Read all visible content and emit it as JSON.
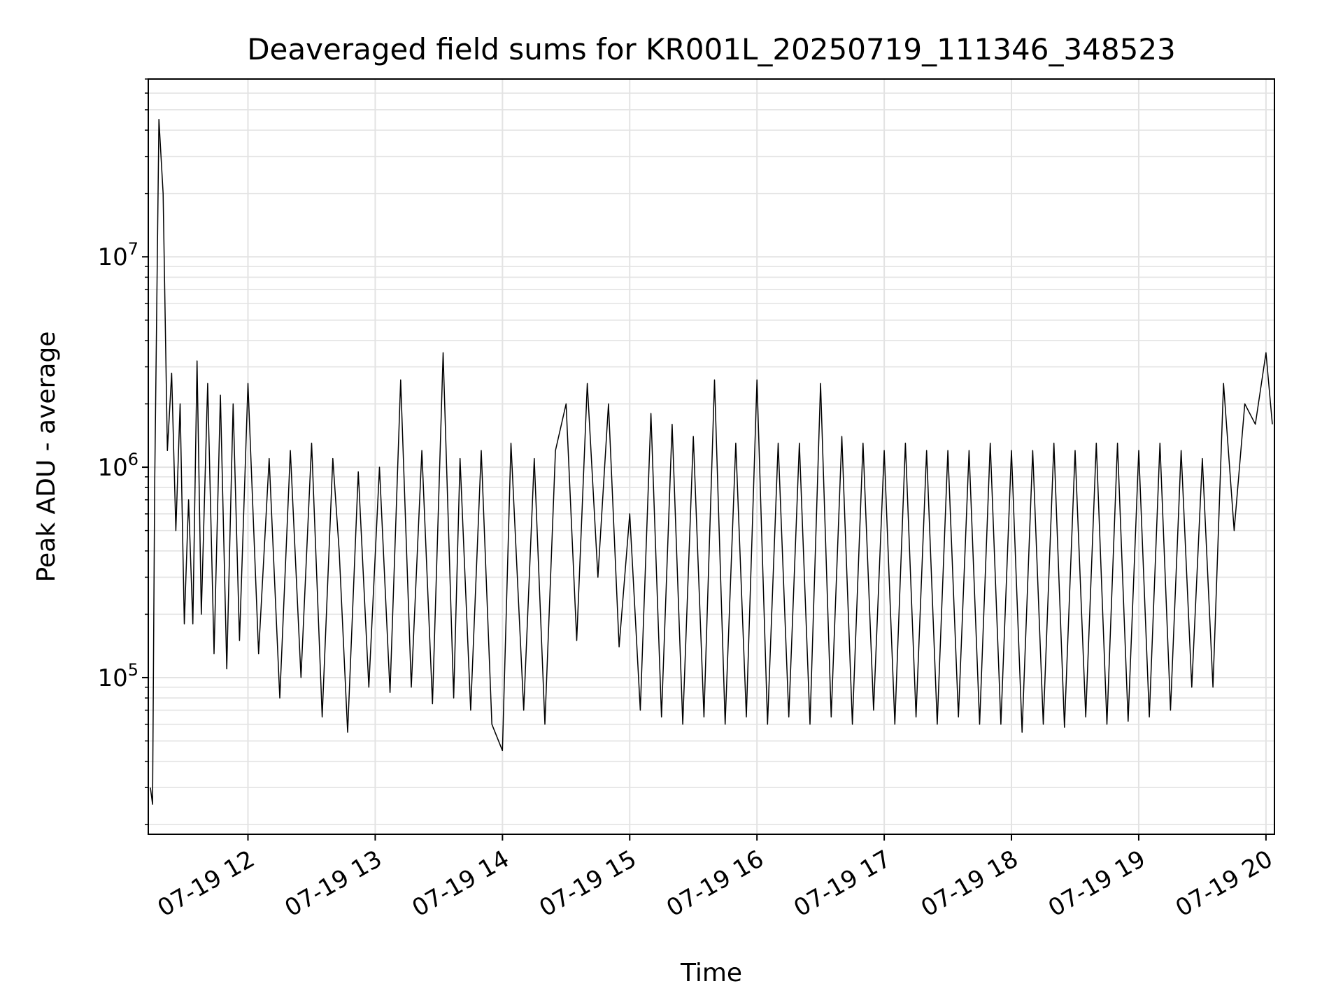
{
  "chart_data": {
    "type": "line",
    "title": "Deaveraged field sums for KR001L_20250719_111346_348523",
    "xlabel": "Time",
    "ylabel": "Peak ADU - average",
    "x_scale": "time",
    "y_scale": "log",
    "xlim": [
      "2025-07-19 11:13",
      "2025-07-19 20:04"
    ],
    "ylim": [
      18000,
      70000000
    ],
    "grid": true,
    "line_color": "#000000",
    "x_ticks": [
      {
        "time": "2025-07-19 12:00",
        "label": "07-19 12"
      },
      {
        "time": "2025-07-19 13:00",
        "label": "07-19 13"
      },
      {
        "time": "2025-07-19 14:00",
        "label": "07-19 14"
      },
      {
        "time": "2025-07-19 15:00",
        "label": "07-19 15"
      },
      {
        "time": "2025-07-19 16:00",
        "label": "07-19 16"
      },
      {
        "time": "2025-07-19 17:00",
        "label": "07-19 17"
      },
      {
        "time": "2025-07-19 18:00",
        "label": "07-19 18"
      },
      {
        "time": "2025-07-19 19:00",
        "label": "07-19 19"
      },
      {
        "time": "2025-07-19 20:00",
        "label": "07-19 20"
      }
    ],
    "y_ticks": [
      {
        "value": 100000,
        "base": "10",
        "exp": "5"
      },
      {
        "value": 1000000,
        "base": "10",
        "exp": "6"
      },
      {
        "value": 10000000,
        "base": "10",
        "exp": "7"
      }
    ],
    "series": [
      {
        "x": [
          "2025-07-19 11:14",
          "2025-07-19 11:15",
          "2025-07-19 11:16",
          "2025-07-19 11:18",
          "2025-07-19 11:20",
          "2025-07-19 11:22",
          "2025-07-19 11:24",
          "2025-07-19 11:26",
          "2025-07-19 11:28",
          "2025-07-19 11:30",
          "2025-07-19 11:32",
          "2025-07-19 11:34",
          "2025-07-19 11:36",
          "2025-07-19 11:38",
          "2025-07-19 11:41",
          "2025-07-19 11:44",
          "2025-07-19 11:47",
          "2025-07-19 11:50",
          "2025-07-19 11:53",
          "2025-07-19 11:56",
          "2025-07-19 12:00",
          "2025-07-19 12:05",
          "2025-07-19 12:10",
          "2025-07-19 12:15",
          "2025-07-19 12:20",
          "2025-07-19 12:25",
          "2025-07-19 12:30",
          "2025-07-19 12:35",
          "2025-07-19 12:40",
          "2025-07-19 12:43",
          "2025-07-19 12:47",
          "2025-07-19 12:52",
          "2025-07-19 12:57",
          "2025-07-19 13:02",
          "2025-07-19 13:07",
          "2025-07-19 13:12",
          "2025-07-19 13:17",
          "2025-07-19 13:22",
          "2025-07-19 13:27",
          "2025-07-19 13:32",
          "2025-07-19 13:37",
          "2025-07-19 13:40",
          "2025-07-19 13:45",
          "2025-07-19 13:50",
          "2025-07-19 13:55",
          "2025-07-19 14:00",
          "2025-07-19 14:04",
          "2025-07-19 14:10",
          "2025-07-19 14:15",
          "2025-07-19 14:20",
          "2025-07-19 14:25",
          "2025-07-19 14:30",
          "2025-07-19 14:35",
          "2025-07-19 14:40",
          "2025-07-19 14:45",
          "2025-07-19 14:50",
          "2025-07-19 14:55",
          "2025-07-19 15:00",
          "2025-07-19 15:05",
          "2025-07-19 15:10",
          "2025-07-19 15:15",
          "2025-07-19 15:20",
          "2025-07-19 15:25",
          "2025-07-19 15:30",
          "2025-07-19 15:35",
          "2025-07-19 15:40",
          "2025-07-19 15:45",
          "2025-07-19 15:50",
          "2025-07-19 15:55",
          "2025-07-19 16:00",
          "2025-07-19 16:05",
          "2025-07-19 16:10",
          "2025-07-19 16:15",
          "2025-07-19 16:20",
          "2025-07-19 16:25",
          "2025-07-19 16:30",
          "2025-07-19 16:35",
          "2025-07-19 16:40",
          "2025-07-19 16:45",
          "2025-07-19 16:50",
          "2025-07-19 16:55",
          "2025-07-19 17:00",
          "2025-07-19 17:05",
          "2025-07-19 17:10",
          "2025-07-19 17:15",
          "2025-07-19 17:20",
          "2025-07-19 17:25",
          "2025-07-19 17:30",
          "2025-07-19 17:35",
          "2025-07-19 17:40",
          "2025-07-19 17:45",
          "2025-07-19 17:50",
          "2025-07-19 17:55",
          "2025-07-19 18:00",
          "2025-07-19 18:05",
          "2025-07-19 18:10",
          "2025-07-19 18:15",
          "2025-07-19 18:20",
          "2025-07-19 18:25",
          "2025-07-19 18:30",
          "2025-07-19 18:35",
          "2025-07-19 18:40",
          "2025-07-19 18:45",
          "2025-07-19 18:50",
          "2025-07-19 18:55",
          "2025-07-19 19:00",
          "2025-07-19 19:05",
          "2025-07-19 19:10",
          "2025-07-19 19:15",
          "2025-07-19 19:20",
          "2025-07-19 19:25",
          "2025-07-19 19:30",
          "2025-07-19 19:35",
          "2025-07-19 19:40",
          "2025-07-19 19:45",
          "2025-07-19 19:50",
          "2025-07-19 19:55",
          "2025-07-19 20:00",
          "2025-07-19 20:03"
        ],
        "values": [
          30000,
          25000,
          800000,
          45000000,
          20000000,
          1200000,
          2800000,
          500000,
          2000000,
          180000,
          700000,
          180000,
          3200000,
          200000,
          2500000,
          130000,
          2200000,
          110000,
          2000000,
          150000,
          2500000,
          130000,
          1100000,
          80000,
          1200000,
          100000,
          1300000,
          65000,
          1100000,
          400000,
          55000,
          950000,
          90000,
          1000000,
          85000,
          2600000,
          90000,
          1200000,
          75000,
          3500000,
          80000,
          1100000,
          70000,
          1200000,
          60000,
          45000,
          1300000,
          70000,
          1100000,
          60000,
          1200000,
          2000000,
          150000,
          2500000,
          300000,
          2000000,
          140000,
          600000,
          70000,
          1800000,
          65000,
          1600000,
          60000,
          1400000,
          65000,
          2600000,
          60000,
          1300000,
          65000,
          2600000,
          60000,
          1300000,
          65000,
          1300000,
          60000,
          2500000,
          65000,
          1400000,
          60000,
          1300000,
          70000,
          1200000,
          60000,
          1300000,
          65000,
          1200000,
          60000,
          1200000,
          65000,
          1200000,
          60000,
          1300000,
          60000,
          1200000,
          55000,
          1200000,
          60000,
          1300000,
          58000,
          1200000,
          65000,
          1300000,
          60000,
          1300000,
          62000,
          1200000,
          65000,
          1300000,
          70000,
          1200000,
          90000,
          1100000,
          90000,
          2500000,
          500000,
          2000000,
          1600000,
          3500000,
          1600000
        ],
        "description_note": ""
      }
    ]
  }
}
